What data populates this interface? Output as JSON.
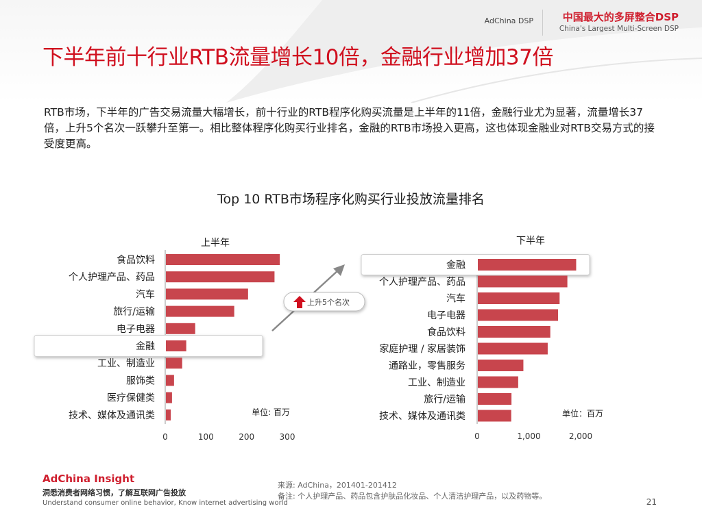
{
  "header": {
    "brand_left": "AdChina DSP",
    "brand_cn": "中国最大的多屏整合DSP",
    "brand_en": "China's Largest Multi-Screen DSP"
  },
  "slide": {
    "title": "下半年前十行业RTB流量增长10倍，金融行业增加37倍",
    "intro": "RTB市场，下半年的广告交易流量大幅增长，前十行业的RTB程序化购买流量是上半年的11倍，金融行业尤为显著，流量增长37倍，上升5个名次一跃攀升至第一。相比整体程序化购买行业排名，金融的RTB市场投入更高，这也体现金融业对RTB交易方式的接受度更高。",
    "chart_title": "Top 10 RTB市场程序化购买行业投放流量排名",
    "callout": "上升5个名次"
  },
  "chart_data": [
    {
      "type": "bar",
      "orientation": "horizontal",
      "title": "上半年",
      "unit_note": "单位: 百万",
      "categories": [
        "食品饮料",
        "个人护理产品、药品",
        "汽车",
        "旅行/运输",
        "电子电器",
        "金融",
        "工业、制造业",
        "服饰类",
        "医疗保健类",
        "技术、媒体及通讯类"
      ],
      "values": [
        280,
        267,
        202,
        168,
        72,
        50,
        40,
        20,
        15,
        12
      ],
      "xlim": [
        0,
        300
      ],
      "ticks": [
        0,
        100,
        200,
        300
      ],
      "tick_labels": [
        "0",
        "100",
        "200",
        "300"
      ],
      "highlight": "金融",
      "bar_color": "#c8454d"
    },
    {
      "type": "bar",
      "orientation": "horizontal",
      "title": "下半年",
      "unit_note": "单位：百万",
      "categories": [
        "金融",
        "个人护理产品、药品",
        "汽车",
        "电子电器",
        "食品饮料",
        "家庭护理 / 家居装饰",
        "通路业，零售服务",
        "工业、制造业",
        "旅行/运输",
        "技术、媒体及通讯类"
      ],
      "values": [
        1900,
        1730,
        1580,
        1550,
        1400,
        1350,
        880,
        780,
        650,
        645
      ],
      "xlim": [
        0,
        2000
      ],
      "ticks": [
        0,
        1000,
        2000
      ],
      "tick_labels": [
        "0",
        "1,000",
        "2,000"
      ],
      "highlight": "金融",
      "bar_color": "#c8454d"
    }
  ],
  "footer": {
    "brand": "AdChina Insight",
    "tagline_cn": "洞悉消费者网络习惯，了解互联网广告投放",
    "tagline_en": "Understand consumer online behavior, Know internet advertising world",
    "source": "来源: AdChina，201401-201412",
    "note": "备注: 个人护理产品、药品包含护肤品化妆品、个人清洁护理产品，以及药物等。",
    "page": "21"
  }
}
